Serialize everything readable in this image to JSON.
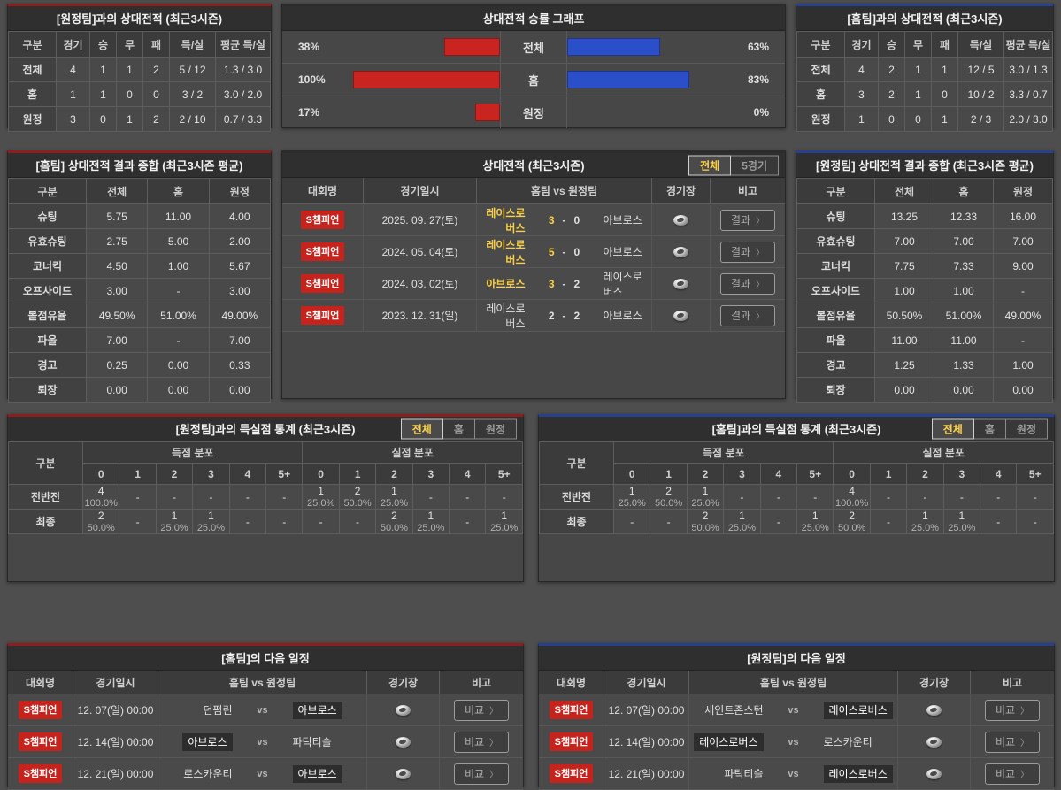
{
  "ui": {
    "vs": "vs",
    "chevron": "〉"
  },
  "colors": {
    "accent_red": "#8b1e1e",
    "accent_blue": "#27418f",
    "bar_red": "#c9241f",
    "bar_blue": "#2b4ec9",
    "highlight_yellow": "#f8cf46",
    "badge_red": "#c7231d"
  },
  "away_h2h": {
    "title": "[원정팀]과의 상대전적 (최근3시즌)",
    "headers": [
      "구분",
      "경기",
      "승",
      "무",
      "패",
      "득/실",
      "평균 득/실"
    ],
    "rows": [
      {
        "label": "전체",
        "cells": [
          "4",
          "1",
          "1",
          "2",
          "5 / 12",
          "1.3 / 3.0"
        ]
      },
      {
        "label": "홈",
        "cells": [
          "1",
          "1",
          "0",
          "0",
          "3 / 2",
          "3.0 / 2.0"
        ]
      },
      {
        "label": "원정",
        "cells": [
          "3",
          "0",
          "1",
          "2",
          "2 / 10",
          "0.7 / 3.3"
        ]
      }
    ]
  },
  "winrate": {
    "title": "상대전적 승률 그래프",
    "rows": [
      {
        "label": "전체",
        "left_pct": 38,
        "right_pct": 63
      },
      {
        "label": "홈",
        "left_pct": 100,
        "right_pct": 83
      },
      {
        "label": "원정",
        "left_pct": 17,
        "right_pct": 0
      }
    ]
  },
  "home_h2h": {
    "title": "[홈팀]과의 상대전적 (최근3시즌)",
    "headers": [
      "구분",
      "경기",
      "승",
      "무",
      "패",
      "득/실",
      "평균 득/실"
    ],
    "rows": [
      {
        "label": "전체",
        "cells": [
          "4",
          "2",
          "1",
          "1",
          "12 / 5",
          "3.0 / 1.3"
        ]
      },
      {
        "label": "홈",
        "cells": [
          "3",
          "2",
          "1",
          "0",
          "10 / 2",
          "3.3 / 0.7"
        ]
      },
      {
        "label": "원정",
        "cells": [
          "1",
          "0",
          "0",
          "1",
          "2 / 3",
          "2.0 / 3.0"
        ]
      }
    ]
  },
  "home_summary": {
    "title": "[홈팀] 상대전적 결과 종합 (최근3시즌 평균)",
    "headers": [
      "구분",
      "전체",
      "홈",
      "원정"
    ],
    "rows": [
      {
        "label": "슈팅",
        "cells": [
          "5.75",
          "11.00",
          "4.00"
        ]
      },
      {
        "label": "유효슈팅",
        "cells": [
          "2.75",
          "5.00",
          "2.00"
        ]
      },
      {
        "label": "코너킥",
        "cells": [
          "4.50",
          "1.00",
          "5.67"
        ]
      },
      {
        "label": "오프사이드",
        "cells": [
          "3.00",
          "-",
          "3.00"
        ]
      },
      {
        "label": "볼점유율",
        "cells": [
          "49.50%",
          "51.00%",
          "49.00%"
        ]
      },
      {
        "label": "파울",
        "cells": [
          "7.00",
          "-",
          "7.00"
        ]
      },
      {
        "label": "경고",
        "cells": [
          "0.25",
          "0.00",
          "0.33"
        ]
      },
      {
        "label": "퇴장",
        "cells": [
          "0.00",
          "0.00",
          "0.00"
        ]
      }
    ]
  },
  "matches": {
    "title": "상대전적 (최근3시즌)",
    "tabs": [
      {
        "label": "전체",
        "active": true
      },
      {
        "label": "5경기",
        "active": false
      }
    ],
    "headers": [
      "대회명",
      "경기일시",
      "홈팀  vs  원정팀",
      "경기장",
      "비고"
    ],
    "button_label": "결과",
    "rows": [
      {
        "league": "S챔피언",
        "date": "2025. 09. 27(토)",
        "home": "레이스로버스",
        "home_score": "3",
        "away_score": "0",
        "away": "아브로스",
        "winner": "home"
      },
      {
        "league": "S챔피언",
        "date": "2024. 05. 04(토)",
        "home": "레이스로버스",
        "home_score": "5",
        "away_score": "0",
        "away": "아브로스",
        "winner": "home"
      },
      {
        "league": "S챔피언",
        "date": "2024. 03. 02(토)",
        "home": "아브로스",
        "home_score": "3",
        "away_score": "2",
        "away": "레이스로버스",
        "winner": "home"
      },
      {
        "league": "S챔피언",
        "date": "2023. 12. 31(일)",
        "home": "레이스로버스",
        "home_score": "2",
        "away_score": "2",
        "away": "아브로스",
        "winner": "none"
      }
    ]
  },
  "away_summary": {
    "title": "[원정팀] 상대전적 결과 종합 (최근3시즌 평균)",
    "headers": [
      "구분",
      "전체",
      "홈",
      "원정"
    ],
    "rows": [
      {
        "label": "슈팅",
        "cells": [
          "13.25",
          "12.33",
          "16.00"
        ]
      },
      {
        "label": "유효슈팅",
        "cells": [
          "7.00",
          "7.00",
          "7.00"
        ]
      },
      {
        "label": "코너킥",
        "cells": [
          "7.75",
          "7.33",
          "9.00"
        ]
      },
      {
        "label": "오프사이드",
        "cells": [
          "1.00",
          "1.00",
          "-"
        ]
      },
      {
        "label": "볼점유율",
        "cells": [
          "50.50%",
          "51.00%",
          "49.00%"
        ]
      },
      {
        "label": "파울",
        "cells": [
          "11.00",
          "11.00",
          "-"
        ]
      },
      {
        "label": "경고",
        "cells": [
          "1.25",
          "1.33",
          "1.00"
        ]
      },
      {
        "label": "퇴장",
        "cells": [
          "0.00",
          "0.00",
          "0.00"
        ]
      }
    ]
  },
  "goals_away": {
    "title": "[원정팀]과의 득실점 통계 (최근3시즌)",
    "tabs": [
      {
        "label": "전체",
        "active": true
      },
      {
        "label": "홈",
        "active": false
      },
      {
        "label": "원정",
        "active": false
      }
    ],
    "col_label": "구분",
    "scored_label": "득점 분포",
    "conceded_label": "실점 분포",
    "cols": [
      "0",
      "1",
      "2",
      "3",
      "4",
      "5+"
    ],
    "rows": [
      {
        "label": "전반전",
        "scored": [
          [
            "4",
            "100.0%"
          ],
          null,
          null,
          null,
          null,
          null
        ],
        "conceded": [
          [
            "1",
            "25.0%"
          ],
          [
            "2",
            "50.0%"
          ],
          [
            "1",
            "25.0%"
          ],
          null,
          null,
          null
        ]
      },
      {
        "label": "최종",
        "scored": [
          [
            "2",
            "50.0%"
          ],
          null,
          [
            "1",
            "25.0%"
          ],
          [
            "1",
            "25.0%"
          ],
          null,
          null
        ],
        "conceded": [
          null,
          null,
          [
            "2",
            "50.0%"
          ],
          [
            "1",
            "25.0%"
          ],
          null,
          [
            "1",
            "25.0%"
          ]
        ]
      }
    ]
  },
  "goals_home": {
    "title": "[홈팀]과의 득실점 통계 (최근3시즌)",
    "tabs": [
      {
        "label": "전체",
        "active": true
      },
      {
        "label": "홈",
        "active": false
      },
      {
        "label": "원정",
        "active": false
      }
    ],
    "col_label": "구분",
    "scored_label": "득점 분포",
    "conceded_label": "실점 분포",
    "cols": [
      "0",
      "1",
      "2",
      "3",
      "4",
      "5+"
    ],
    "rows": [
      {
        "label": "전반전",
        "scored": [
          [
            "1",
            "25.0%"
          ],
          [
            "2",
            "50.0%"
          ],
          [
            "1",
            "25.0%"
          ],
          null,
          null,
          null
        ],
        "conceded": [
          [
            "4",
            "100.0%"
          ],
          null,
          null,
          null,
          null,
          null
        ]
      },
      {
        "label": "최종",
        "scored": [
          null,
          null,
          [
            "2",
            "50.0%"
          ],
          [
            "1",
            "25.0%"
          ],
          null,
          [
            "1",
            "25.0%"
          ]
        ],
        "conceded": [
          [
            "2",
            "50.0%"
          ],
          null,
          [
            "1",
            "25.0%"
          ],
          [
            "1",
            "25.0%"
          ],
          null,
          null
        ]
      }
    ]
  },
  "schedule_home": {
    "title": "[홈팀]의 다음 일정",
    "headers": [
      "대회명",
      "경기일시",
      "홈팀  vs  원정팀",
      "경기장",
      "비고"
    ],
    "button_label": "비교",
    "rows": [
      {
        "league": "S챔피언",
        "date": "12. 07(일) 00:00",
        "home": "던펌린",
        "away": "아브로스",
        "highlight": "away"
      },
      {
        "league": "S챔피언",
        "date": "12. 14(일) 00:00",
        "home": "아브로스",
        "away": "파틱티슬",
        "highlight": "home"
      },
      {
        "league": "S챔피언",
        "date": "12. 21(일) 00:00",
        "home": "로스카운티",
        "away": "아브로스",
        "highlight": "away"
      }
    ]
  },
  "schedule_away": {
    "title": "[원정팀]의 다음 일정",
    "headers": [
      "대회명",
      "경기일시",
      "홈팀  vs  원정팀",
      "경기장",
      "비고"
    ],
    "button_label": "비교",
    "rows": [
      {
        "league": "S챔피언",
        "date": "12. 07(일) 00:00",
        "home": "세인트존스턴",
        "away": "레이스로버스",
        "highlight": "away"
      },
      {
        "league": "S챔피언",
        "date": "12. 14(일) 00:00",
        "home": "레이스로버스",
        "away": "로스카운티",
        "highlight": "home"
      },
      {
        "league": "S챔피언",
        "date": "12. 21(일) 00:00",
        "home": "파틱티슬",
        "away": "레이스로버스",
        "highlight": "away"
      }
    ]
  }
}
